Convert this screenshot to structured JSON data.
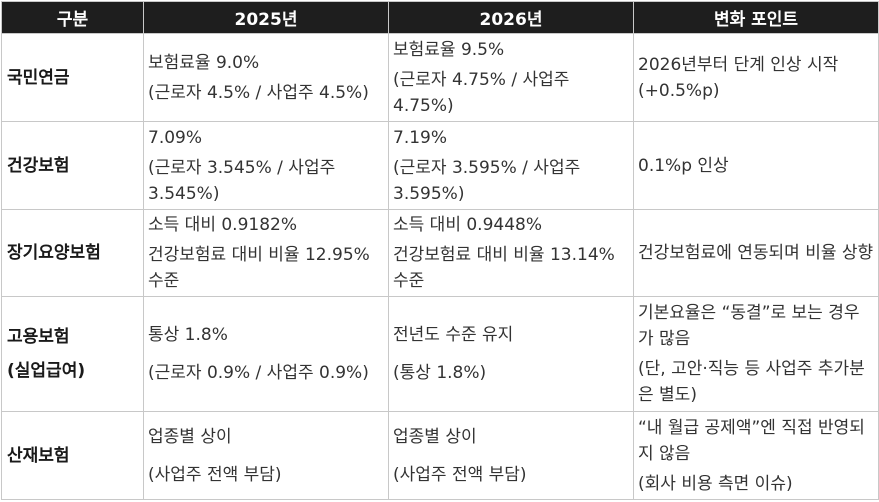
{
  "table": {
    "headers": [
      "구분",
      "2025년",
      "2026년",
      "변화 포인트"
    ],
    "rows": [
      {
        "category": "국민연금",
        "y2025": [
          "보험료율 9.0%",
          "(근로자 4.5% / 사업주 4.5%)"
        ],
        "y2026": [
          "보험료율 9.5%",
          "(근로자 4.75% / 사업주 4.75%)"
        ],
        "change": [
          "2026년부터 단계 인상 시작(+0.5%p)"
        ]
      },
      {
        "category": "건강보험",
        "y2025": [
          "7.09%",
          "(근로자 3.545% / 사업주 3.545%)"
        ],
        "y2026": [
          "7.19%",
          "(근로자 3.595% / 사업주 3.595%)"
        ],
        "change": [
          "0.1%p 인상"
        ]
      },
      {
        "category": "장기요양보험",
        "y2025": [
          "소득 대비 0.9182%",
          "건강보험료 대비 비율 12.95% 수준"
        ],
        "y2026": [
          "소득 대비 0.9448%",
          "건강보험료 대비 비율 13.14% 수준"
        ],
        "change": [
          "건강보험료에 연동되며 비율 상향"
        ]
      },
      {
        "category": "고용보험\n(실업급여)",
        "y2025": [
          "통상 1.8%",
          "(근로자 0.9% / 사업주 0.9%)"
        ],
        "y2026": [
          "전년도 수준 유지",
          "(통상 1.8%)"
        ],
        "change": [
          "기본요율은 “동결”로 보는 경우가 많음",
          "(단, 고안·직능 등 사업주 추가분은 별도)"
        ]
      },
      {
        "category": "산재보험",
        "y2025": [
          "업종별 상이",
          "(사업주 전액 부담)"
        ],
        "y2026": [
          "업종별 상이",
          "(사업주 전액 부담)"
        ],
        "change": [
          "“내 월급 공제액”엔 직접 반영되지 않음",
          "(회사 비용 측면 이슈)"
        ]
      }
    ]
  }
}
